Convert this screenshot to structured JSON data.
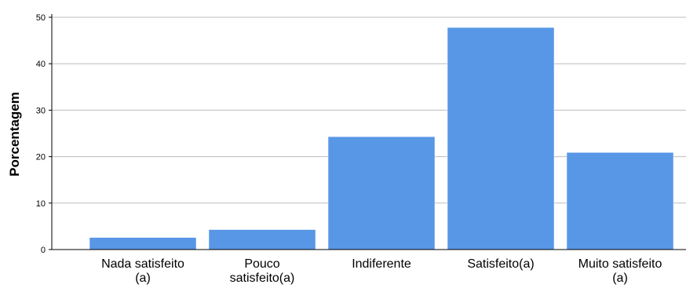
{
  "chart_data": {
    "type": "bar",
    "categories": [
      [
        "Nada satisfeito",
        "(a)"
      ],
      [
        "Pouco",
        "satisfeito(a)"
      ],
      [
        "Indiferente"
      ],
      [
        "Satisfeito(a)"
      ],
      [
        "Muito satisfeito",
        "(a)"
      ]
    ],
    "values": [
      2.6,
      4.3,
      24.3,
      47.8,
      20.9
    ],
    "ylabel": "Porcentagem",
    "xlabel": "",
    "ylim": [
      0,
      50
    ],
    "yticks": [
      "0",
      "10",
      "20",
      "30",
      "40",
      "50"
    ],
    "grid": true,
    "bar_color": "#5897e6",
    "grid_color": "#bdbdbd"
  }
}
